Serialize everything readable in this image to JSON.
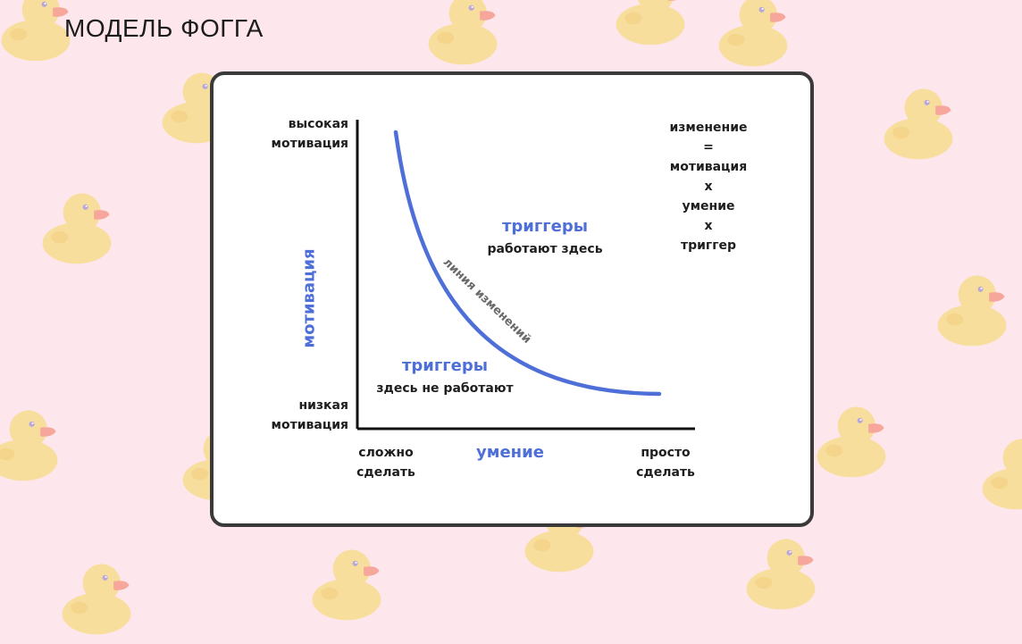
{
  "page": {
    "title": "МОДЕЛЬ ФОГГА",
    "background": "#fde6ec"
  },
  "chart": {
    "y_axis_label": "мотивация",
    "x_axis_label": "умение",
    "y_high": [
      "высокая",
      "мотивация"
    ],
    "y_low": [
      "низкая",
      "мотивация"
    ],
    "x_left": [
      "сложно",
      "сделать"
    ],
    "x_right": [
      "просто",
      "сделать"
    ],
    "curve_label": "линия изменений",
    "above_curve": {
      "title": "триггеры",
      "subtitle": "работают здесь"
    },
    "below_curve": {
      "title": "триггеры",
      "subtitle": "здесь не работают"
    },
    "formula": [
      "изменение",
      "=",
      "мотивация",
      "x",
      "умение",
      "x",
      "триггер"
    ],
    "accent_color": "#4f6fd8"
  },
  "decoration": {
    "icon": "rubber-duck-icon",
    "count": 17
  }
}
